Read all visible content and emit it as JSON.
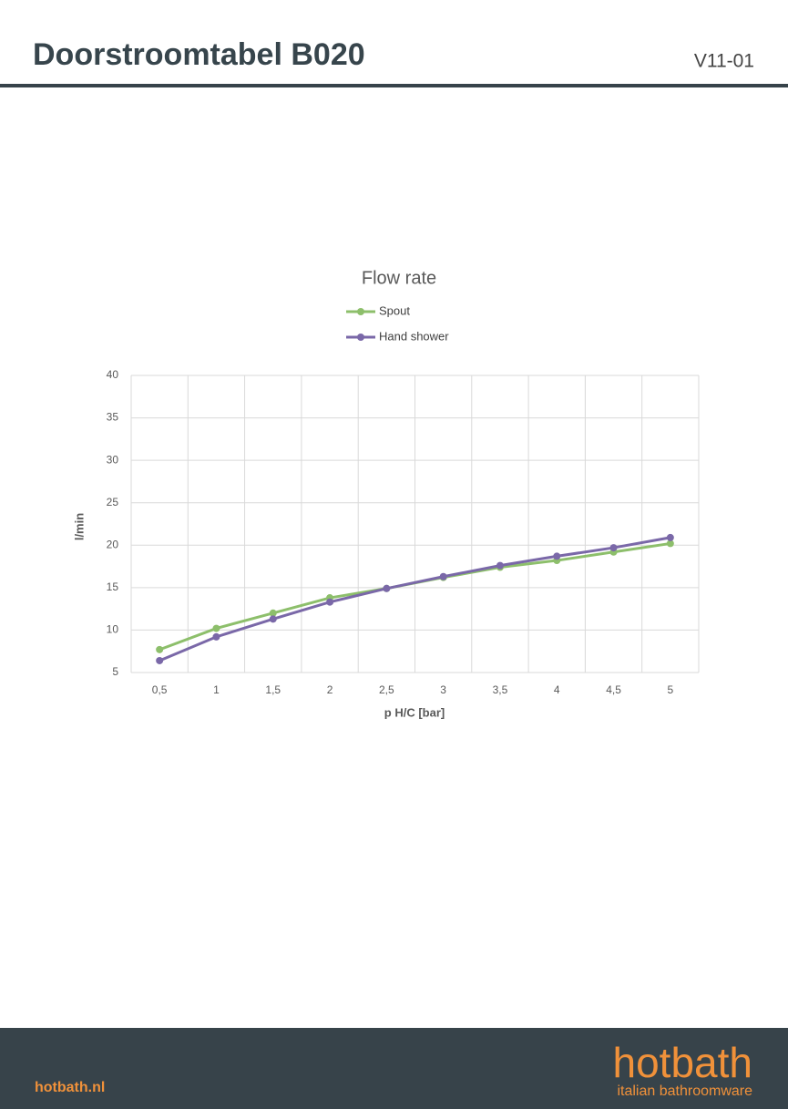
{
  "header": {
    "title": "Doorstroomtabel B020",
    "version": "V11-01"
  },
  "chart_data": {
    "type": "line",
    "title": "Flow rate",
    "x_label": "p H/C [bar]",
    "y_label": "l/min",
    "categories": [
      "0,5",
      "1",
      "1,5",
      "2",
      "2,5",
      "3",
      "3,5",
      "4",
      "4,5",
      "5"
    ],
    "series": [
      {
        "name": "Spout",
        "color": "#8dbf6b",
        "values": [
          7.7,
          10.2,
          12.0,
          13.8,
          14.9,
          16.2,
          17.4,
          18.2,
          19.2,
          20.2
        ]
      },
      {
        "name": "Hand shower",
        "color": "#7a68a8",
        "values": [
          6.4,
          9.2,
          11.3,
          13.3,
          14.9,
          16.3,
          17.6,
          18.7,
          19.7,
          20.9
        ]
      }
    ],
    "ylim": [
      5,
      40
    ],
    "yticks": [
      5,
      10,
      15,
      20,
      25,
      30,
      35,
      40
    ],
    "grid": true,
    "legend": "top"
  },
  "footer": {
    "website": "hotbath.nl",
    "logo": "hotbath",
    "tagline": "italian bathroomware"
  }
}
